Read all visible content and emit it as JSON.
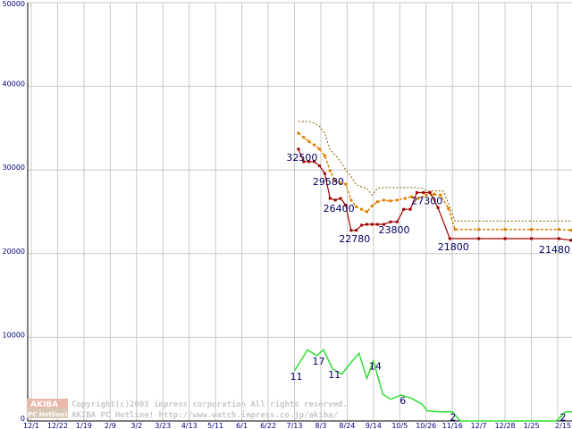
{
  "chart_data": {
    "type": "line",
    "ylim": [
      0,
      50000
    ],
    "y_ticks": [
      0,
      10000,
      20000,
      30000,
      40000,
      50000
    ],
    "y_tick_labels": [
      "0",
      "10000",
      "20000",
      "30000",
      "40000",
      "50000"
    ],
    "x_tick_labels": [
      "12/1",
      "12/22",
      "1/19",
      "2/9",
      "3/2",
      "3/23",
      "4/13",
      "5/11",
      "6/1",
      "6/22",
      "7/13",
      "8/3",
      "8/24",
      "9/14",
      "10/5",
      "10/26",
      "11/16",
      "12/7",
      "12/28",
      "1/25",
      "2/15"
    ],
    "grid": true,
    "colors": {
      "min_price": "#a00000",
      "avg_price": "#e08000",
      "max_price": "#806000",
      "shop_count": "#30e030",
      "grid": "#c8c8c8",
      "labels": "#000060"
    },
    "series": [
      {
        "values": [
          {
            "x": 10.15,
            "y": 35800
          },
          {
            "x": 10.35,
            "y": 35800
          },
          {
            "x": 10.55,
            "y": 35800
          },
          {
            "x": 10.75,
            "y": 35600
          },
          {
            "x": 10.95,
            "y": 35200
          },
          {
            "x": 11.15,
            "y": 34400
          },
          {
            "x": 11.35,
            "y": 32400
          },
          {
            "x": 11.55,
            "y": 31800
          },
          {
            "x": 11.75,
            "y": 31000
          },
          {
            "x": 11.95,
            "y": 30000
          },
          {
            "x": 12.15,
            "y": 29200
          },
          {
            "x": 12.35,
            "y": 28200
          },
          {
            "x": 12.55,
            "y": 28000
          },
          {
            "x": 12.75,
            "y": 27800
          },
          {
            "x": 12.95,
            "y": 27000
          },
          {
            "x": 13.15,
            "y": 27800
          },
          {
            "x": 13.4,
            "y": 27900
          },
          {
            "x": 13.8,
            "y": 27900
          },
          {
            "x": 14.2,
            "y": 27900
          },
          {
            "x": 14.6,
            "y": 27900
          },
          {
            "x": 14.85,
            "y": 27800
          },
          {
            "x": 15.05,
            "y": 27500
          },
          {
            "x": 15.4,
            "y": 27500
          },
          {
            "x": 15.65,
            "y": 27500
          },
          {
            "x": 15.85,
            "y": 26000
          },
          {
            "x": 16.1,
            "y": 23900
          },
          {
            "x": 17,
            "y": 23900
          },
          {
            "x": 18,
            "y": 23900
          },
          {
            "x": 19,
            "y": 23900
          },
          {
            "x": 20,
            "y": 23900
          },
          {
            "x": 20.5,
            "y": 23900
          },
          {
            "x": 20.95,
            "y": 23900
          }
        ]
      },
      {
        "values": [
          {
            "x": 10.15,
            "y": 34400
          },
          {
            "x": 10.35,
            "y": 33900
          },
          {
            "x": 10.55,
            "y": 33400
          },
          {
            "x": 10.75,
            "y": 33000
          },
          {
            "x": 10.95,
            "y": 32500
          },
          {
            "x": 11.15,
            "y": 31700
          },
          {
            "x": 11.35,
            "y": 29900
          },
          {
            "x": 11.55,
            "y": 28700
          },
          {
            "x": 11.75,
            "y": 28400
          },
          {
            "x": 11.95,
            "y": 28300
          },
          {
            "x": 12.15,
            "y": 26400
          },
          {
            "x": 12.35,
            "y": 25600
          },
          {
            "x": 12.55,
            "y": 25300
          },
          {
            "x": 12.75,
            "y": 25000
          },
          {
            "x": 12.95,
            "y": 25700
          },
          {
            "x": 13.15,
            "y": 26200
          },
          {
            "x": 13.4,
            "y": 26400
          },
          {
            "x": 13.65,
            "y": 26300
          },
          {
            "x": 13.9,
            "y": 26400
          },
          {
            "x": 14.2,
            "y": 26600
          },
          {
            "x": 14.45,
            "y": 26800
          },
          {
            "x": 14.7,
            "y": 26600
          },
          {
            "x": 15.0,
            "y": 27000
          },
          {
            "x": 15.3,
            "y": 27100
          },
          {
            "x": 15.55,
            "y": 27000
          },
          {
            "x": 15.85,
            "y": 25400
          },
          {
            "x": 16.1,
            "y": 22900
          },
          {
            "x": 17,
            "y": 22900
          },
          {
            "x": 18,
            "y": 22900
          },
          {
            "x": 19,
            "y": 22900
          },
          {
            "x": 20.05,
            "y": 22900
          },
          {
            "x": 20.5,
            "y": 22800
          },
          {
            "x": 20.95,
            "y": 22600
          }
        ]
      },
      {
        "values": [
          {
            "x": 10.15,
            "y": 32500
          },
          {
            "x": 10.35,
            "y": 31000
          },
          {
            "x": 10.55,
            "y": 31000
          },
          {
            "x": 10.75,
            "y": 31000
          },
          {
            "x": 10.95,
            "y": 30500
          },
          {
            "x": 11.15,
            "y": 29580
          },
          {
            "x": 11.35,
            "y": 26600
          },
          {
            "x": 11.55,
            "y": 26400
          },
          {
            "x": 11.75,
            "y": 26600
          },
          {
            "x": 11.95,
            "y": 25800
          },
          {
            "x": 12.15,
            "y": 22780
          },
          {
            "x": 12.35,
            "y": 22800
          },
          {
            "x": 12.55,
            "y": 23400
          },
          {
            "x": 12.75,
            "y": 23500
          },
          {
            "x": 12.95,
            "y": 23500
          },
          {
            "x": 13.15,
            "y": 23500
          },
          {
            "x": 13.4,
            "y": 23500
          },
          {
            "x": 13.65,
            "y": 23800
          },
          {
            "x": 13.9,
            "y": 23800
          },
          {
            "x": 14.15,
            "y": 25300
          },
          {
            "x": 14.4,
            "y": 25300
          },
          {
            "x": 14.65,
            "y": 27300
          },
          {
            "x": 14.9,
            "y": 27300
          },
          {
            "x": 15.15,
            "y": 27300
          },
          {
            "x": 15.45,
            "y": 25500
          },
          {
            "x": 15.9,
            "y": 21800
          },
          {
            "x": 17,
            "y": 21800
          },
          {
            "x": 18,
            "y": 21800
          },
          {
            "x": 19,
            "y": 21800
          },
          {
            "x": 20.05,
            "y": 21800
          },
          {
            "x": 20.5,
            "y": 21600
          },
          {
            "x": 20.95,
            "y": 21480
          }
        ]
      },
      {
        "values": [
          {
            "x": 10.0,
            "y": 6000
          },
          {
            "x": 10.5,
            "y": 8500
          },
          {
            "x": 10.85,
            "y": 7800
          },
          {
            "x": 11.1,
            "y": 8500
          },
          {
            "x": 11.45,
            "y": 6200
          },
          {
            "x": 11.8,
            "y": 5600
          },
          {
            "x": 12.15,
            "y": 7000
          },
          {
            "x": 12.45,
            "y": 8100
          },
          {
            "x": 12.75,
            "y": 5100
          },
          {
            "x": 13.0,
            "y": 7200
          },
          {
            "x": 13.35,
            "y": 3200
          },
          {
            "x": 13.65,
            "y": 2600
          },
          {
            "x": 14.05,
            "y": 3100
          },
          {
            "x": 14.45,
            "y": 2700
          },
          {
            "x": 14.85,
            "y": 2000
          },
          {
            "x": 15.05,
            "y": 1200
          },
          {
            "x": 15.5,
            "y": 1100
          },
          {
            "x": 16.0,
            "y": 1100
          },
          {
            "x": 16.3,
            "y": 0
          },
          {
            "x": 17,
            "y": 0
          },
          {
            "x": 18,
            "y": 0
          },
          {
            "x": 19,
            "y": 0
          },
          {
            "x": 19.95,
            "y": 0
          },
          {
            "x": 20.3,
            "y": 1100
          },
          {
            "x": 20.95,
            "y": 1100
          }
        ]
      }
    ],
    "point_labels": [
      {
        "text": "32500",
        "x": 10.15,
        "y": 32500
      },
      {
        "text": "29580",
        "x": 11.15,
        "y": 29580
      },
      {
        "text": "26400",
        "x": 11.55,
        "y": 26400
      },
      {
        "text": "22780",
        "x": 12.15,
        "y": 22780
      },
      {
        "text": "23800",
        "x": 13.65,
        "y": 23800
      },
      {
        "text": "27300",
        "x": 14.9,
        "y": 27300
      },
      {
        "text": "21800",
        "x": 15.9,
        "y": 21800
      },
      {
        "text": "21480",
        "x": 20.95,
        "y": 21480
      }
    ],
    "count_labels": [
      {
        "text": "11",
        "x": 10.0,
        "y": 6000
      },
      {
        "text": "17",
        "x": 10.85,
        "y": 7800
      },
      {
        "text": "11",
        "x": 11.45,
        "y": 6200
      },
      {
        "text": "14",
        "x": 13.0,
        "y": 7200
      },
      {
        "text": "6",
        "x": 14.05,
        "y": 3100
      },
      {
        "text": "2",
        "x": 15.95,
        "y": 1100
      },
      {
        "text": "2",
        "x": 20.95,
        "y": 1100
      }
    ]
  },
  "watermark": {
    "logo_top": "AKIBA",
    "logo_bottom": "PC Hotline!",
    "line1": "Copyright(c)2003 impress corporation All rights reserved.",
    "line2": "AKIBA PC Hotline!  http://www.watch.impress.co.jp/akiba/"
  }
}
